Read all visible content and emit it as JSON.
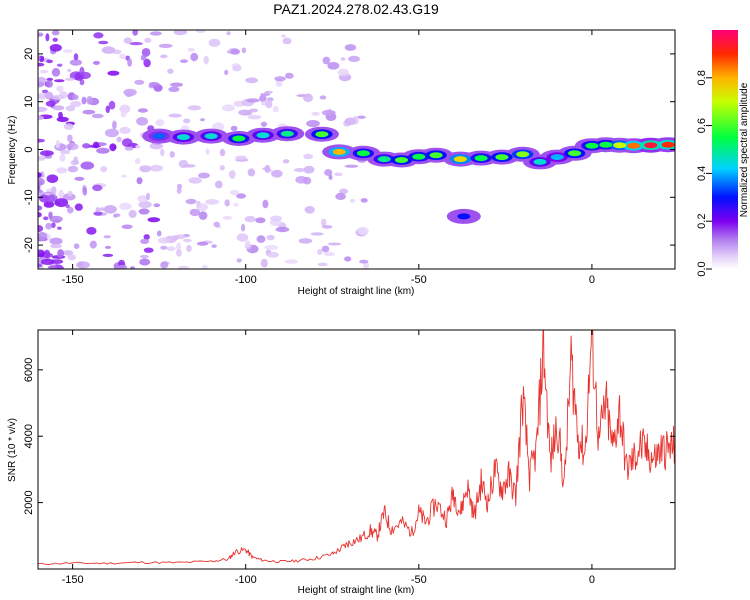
{
  "title": "PAZ1.2024.278.02.43.G19",
  "chart_data": [
    {
      "type": "heatmap",
      "xlabel": "Height of straight line (km)",
      "ylabel": "Frequency (Hz)",
      "xlim": [
        -160,
        24
      ],
      "ylim": [
        -25,
        25
      ],
      "xticks": [
        -150,
        -100,
        -50,
        0
      ],
      "yticks": [
        -20,
        -10,
        0,
        10,
        20
      ],
      "colorbar": {
        "label": "Normalized spectral amplitude",
        "range": [
          0,
          1
        ],
        "ticks": [
          0.0,
          0.2,
          0.4,
          0.6,
          0.8
        ],
        "colormap": "rainbow"
      },
      "ridge": [
        {
          "x": -125,
          "y": 2.8,
          "a": 0.35
        },
        {
          "x": -118,
          "y": 2.6,
          "a": 0.45
        },
        {
          "x": -110,
          "y": 2.8,
          "a": 0.45
        },
        {
          "x": -102,
          "y": 2.3,
          "a": 0.55
        },
        {
          "x": -95,
          "y": 3.0,
          "a": 0.45
        },
        {
          "x": -88,
          "y": 3.3,
          "a": 0.5
        },
        {
          "x": -78,
          "y": 3.2,
          "a": 0.6
        },
        {
          "x": -73,
          "y": -0.5,
          "a": 0.8
        },
        {
          "x": -66,
          "y": -0.8,
          "a": 0.55
        },
        {
          "x": -60,
          "y": -2.0,
          "a": 0.5
        },
        {
          "x": -55,
          "y": -2.2,
          "a": 0.6
        },
        {
          "x": -50,
          "y": -1.5,
          "a": 0.55
        },
        {
          "x": -45,
          "y": -1.2,
          "a": 0.6
        },
        {
          "x": -38,
          "y": -2.0,
          "a": 0.75
        },
        {
          "x": -32,
          "y": -1.8,
          "a": 0.55
        },
        {
          "x": -26,
          "y": -1.6,
          "a": 0.6
        },
        {
          "x": -20,
          "y": -1.0,
          "a": 0.65
        },
        {
          "x": -15,
          "y": -2.6,
          "a": 0.45
        },
        {
          "x": -10,
          "y": -1.6,
          "a": 0.4
        },
        {
          "x": -5,
          "y": -0.8,
          "a": 0.6
        },
        {
          "x": 0,
          "y": 0.8,
          "a": 0.55
        },
        {
          "x": 4,
          "y": 1.0,
          "a": 0.55
        },
        {
          "x": 8,
          "y": 0.9,
          "a": 0.7
        },
        {
          "x": 12,
          "y": 0.8,
          "a": 0.85
        },
        {
          "x": 17,
          "y": 0.9,
          "a": 0.95
        },
        {
          "x": 22,
          "y": 1.0,
          "a": 0.9
        }
      ],
      "isolated_blobs": [
        {
          "x": -37,
          "y": -14,
          "a": 0.3
        }
      ]
    },
    {
      "type": "line",
      "xlabel": "Height of straight line (km)",
      "ylabel": "SNR (10 * v/v)",
      "xlim": [
        -160,
        24
      ],
      "ylim": [
        0,
        7200
      ],
      "xticks": [
        -150,
        -100,
        -50,
        0
      ],
      "yticks": [
        2000,
        4000,
        6000
      ],
      "color": "#e8332f",
      "series": [
        {
          "x": [
            -160,
            -150,
            -140,
            -130,
            -120,
            -110,
            -105,
            -103,
            -100,
            -98,
            -95,
            -90,
            -85,
            -80,
            -75,
            -72,
            -70,
            -67,
            -64,
            -62,
            -60,
            -58,
            -55,
            -52,
            -50,
            -48,
            -45,
            -42,
            -40,
            -38,
            -36,
            -34,
            -32,
            -30,
            -28,
            -26,
            -24,
            -22,
            -20,
            -18,
            -16,
            -14,
            -12,
            -10,
            -8,
            -6,
            -4,
            -2,
            0,
            2,
            4,
            6,
            8,
            10,
            12,
            14,
            16,
            18,
            20,
            22,
            24
          ],
          "y": [
            150,
            180,
            170,
            200,
            190,
            230,
            300,
            520,
            580,
            350,
            260,
            220,
            250,
            320,
            450,
            650,
            800,
            900,
            1150,
            1000,
            1700,
            1200,
            1400,
            1100,
            1700,
            1400,
            2000,
            1500,
            2300,
            1700,
            2500,
            1600,
            2600,
            2000,
            3000,
            2400,
            2800,
            2200,
            5200,
            2800,
            3600,
            6800,
            3200,
            4400,
            2500,
            6300,
            4000,
            3500,
            7100,
            3800,
            5000,
            3600,
            4800,
            3000,
            3300,
            3700,
            3500,
            3300,
            3600,
            3600,
            3700
          ]
        }
      ]
    }
  ]
}
